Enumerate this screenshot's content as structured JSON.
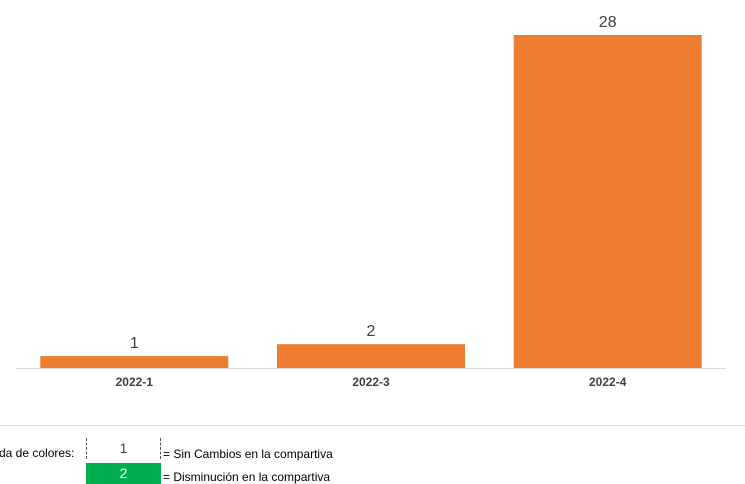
{
  "chart_data": {
    "type": "bar",
    "categories": [
      "2022-1",
      "2022-3",
      "2022-4"
    ],
    "values": [
      1,
      2,
      28
    ],
    "data_labels": [
      "1",
      "2",
      "28"
    ],
    "title": "",
    "xlabel": "",
    "ylabel": "",
    "ylim": [
      0,
      30
    ],
    "bar_color": "#ed7d31",
    "axis_color": "#d9d9d9",
    "grid": false,
    "legend": "none"
  },
  "legend": {
    "title": "da de colores:",
    "items": [
      {
        "value": "1",
        "text": "= Sin Cambios en la compartiva",
        "color": "#ffffff"
      },
      {
        "value": "2",
        "text": "= Disminución en la compartiva",
        "color": "#00b050"
      }
    ]
  }
}
